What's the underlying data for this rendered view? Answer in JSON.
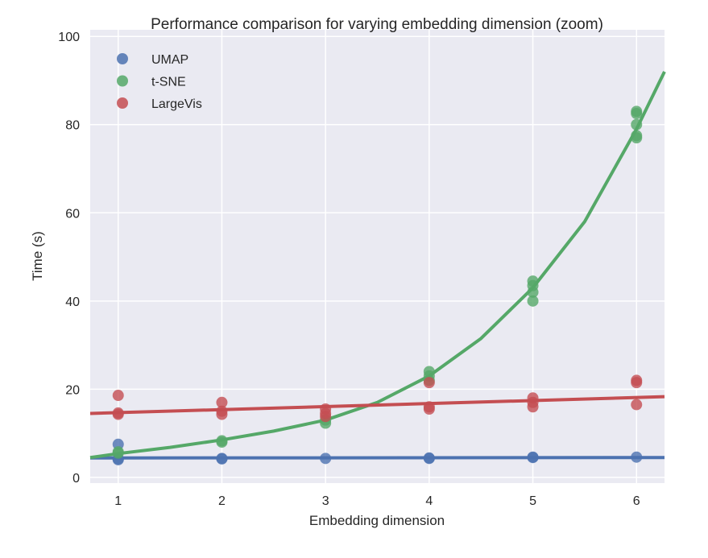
{
  "chart_data": {
    "type": "scatter",
    "title": "Performance comparison for varying embedding dimension (zoom)",
    "xlabel": "Embedding dimension",
    "ylabel": "Time (s)",
    "xlim": [
      0.73,
      6.27
    ],
    "ylim": [
      -1.3,
      101.5
    ],
    "xticks": [
      1,
      2,
      3,
      4,
      5,
      6
    ],
    "yticks": [
      0,
      20,
      40,
      60,
      80,
      100
    ],
    "grid": true,
    "legend_position": "top-left",
    "series": [
      {
        "name": "UMAP",
        "color": "#4c72b0",
        "points": [
          [
            1,
            7.5
          ],
          [
            1,
            4.2
          ],
          [
            1,
            4.0
          ],
          [
            2,
            4.3
          ],
          [
            2,
            4.2
          ],
          [
            3,
            4.3
          ],
          [
            4,
            4.4
          ],
          [
            4,
            4.3
          ],
          [
            5,
            4.6
          ],
          [
            5,
            4.5
          ],
          [
            6,
            4.6
          ]
        ],
        "fit": [
          [
            0.73,
            4.4
          ],
          [
            6.27,
            4.5
          ]
        ]
      },
      {
        "name": "t-SNE",
        "color": "#55a868",
        "points": [
          [
            1,
            5.5
          ],
          [
            1,
            5.8
          ],
          [
            2,
            8.0
          ],
          [
            2,
            8.3
          ],
          [
            3,
            12.3
          ],
          [
            3,
            13.0
          ],
          [
            4,
            22
          ],
          [
            4,
            23
          ],
          [
            4,
            24
          ],
          [
            5,
            40
          ],
          [
            5,
            42
          ],
          [
            5,
            43.5
          ],
          [
            5,
            44.5
          ],
          [
            6,
            77
          ],
          [
            6,
            77.5
          ],
          [
            6,
            80
          ],
          [
            6,
            82.5
          ],
          [
            6,
            83
          ]
        ],
        "fit": [
          [
            0.73,
            4.5
          ],
          [
            1,
            5.4
          ],
          [
            1.5,
            6.8
          ],
          [
            2,
            8.5
          ],
          [
            2.5,
            10.5
          ],
          [
            3,
            13
          ],
          [
            3.5,
            17
          ],
          [
            4,
            23
          ],
          [
            4.5,
            31.5
          ],
          [
            5,
            43
          ],
          [
            5.5,
            58
          ],
          [
            6,
            79
          ],
          [
            6.27,
            92
          ]
        ]
      },
      {
        "name": "LargeVis",
        "color": "#c44e52",
        "points": [
          [
            1,
            18.6
          ],
          [
            1,
            14.3
          ],
          [
            1,
            14.6
          ],
          [
            2,
            17
          ],
          [
            2,
            15
          ],
          [
            2,
            14.3
          ],
          [
            3,
            15.5
          ],
          [
            3,
            14.5
          ],
          [
            3,
            13.8
          ],
          [
            4,
            21.5
          ],
          [
            4,
            16
          ],
          [
            4,
            15.5
          ],
          [
            5,
            18
          ],
          [
            5,
            17
          ],
          [
            5,
            16
          ],
          [
            6,
            21.5
          ],
          [
            6,
            22
          ],
          [
            6,
            16.5
          ]
        ],
        "fit": [
          [
            0.73,
            14.5
          ],
          [
            6.27,
            18.3
          ]
        ]
      }
    ]
  }
}
